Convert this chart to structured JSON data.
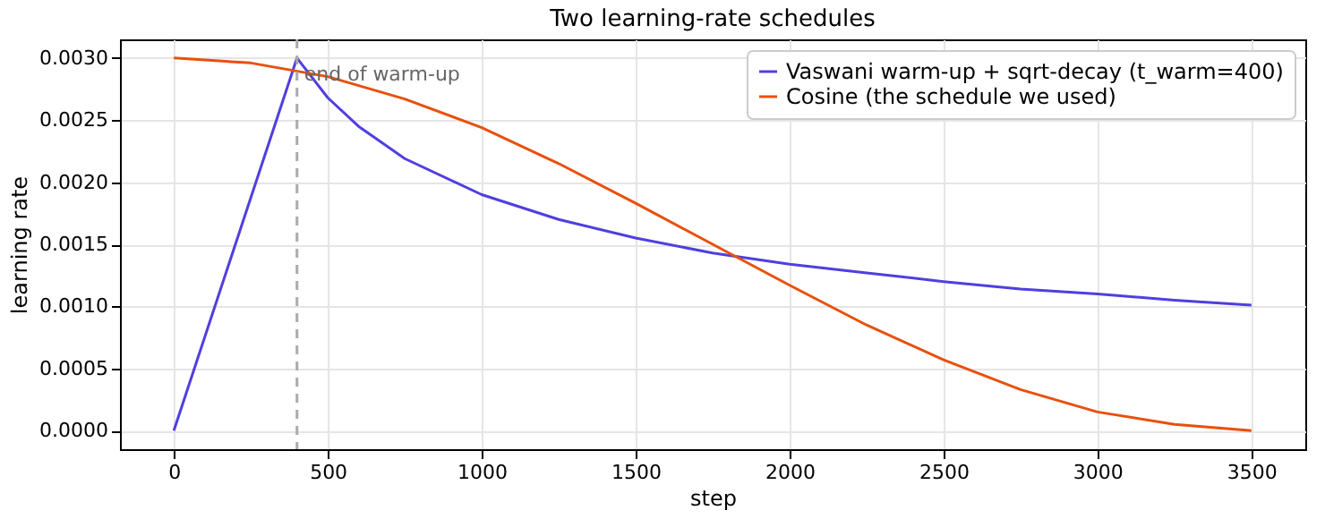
{
  "chart_data": {
    "type": "line",
    "title": "Two learning-rate schedules",
    "xlabel": "step",
    "ylabel": "learning rate",
    "series": [
      {
        "name": "Vaswani warm-up + sqrt-decay (t_warm=400)",
        "color": "#4f3fe0",
        "x": [
          0,
          400,
          500,
          600,
          750,
          1000,
          1250,
          1500,
          1750,
          2000,
          2250,
          2500,
          2750,
          3000,
          3250,
          3500
        ],
        "values": [
          0,
          0.003,
          0.00268,
          0.00245,
          0.00219,
          0.0019,
          0.0017,
          0.00155,
          0.00143,
          0.00134,
          0.00127,
          0.0012,
          0.00114,
          0.0011,
          0.00105,
          0.00101
        ]
      },
      {
        "name": "Cosine (the schedule we used)",
        "color": "#e8500c",
        "x": [
          0,
          250,
          500,
          750,
          1000,
          1250,
          1500,
          1750,
          2000,
          2250,
          2500,
          2750,
          3000,
          3250,
          3500
        ],
        "values": [
          0.003,
          0.00296,
          0.00285,
          0.00267,
          0.00244,
          0.00215,
          0.00183,
          0.0015,
          0.00117,
          0.00085,
          0.00057,
          0.00033,
          0.00015,
          5e-05,
          0
        ]
      }
    ],
    "xlim": [
      -175,
      3675
    ],
    "xticks": [
      0,
      500,
      1000,
      1500,
      2000,
      2500,
      3000,
      3500
    ],
    "ylim": [
      -0.00015,
      0.00315
    ],
    "yticks": [
      {
        "value": 0,
        "label": "0.0000"
      },
      {
        "value": 0.0005,
        "label": "0.0005"
      },
      {
        "value": 0.001,
        "label": "0.0010"
      },
      {
        "value": 0.0015,
        "label": "0.0015"
      },
      {
        "value": 0.002,
        "label": "0.0020"
      },
      {
        "value": 0.0025,
        "label": "0.0025"
      },
      {
        "value": 0.003,
        "label": "0.0030"
      }
    ],
    "ref_lines": [
      {
        "axis": "x",
        "value": 400,
        "label": "end of warm-up",
        "color": "#aaaaaa",
        "line_style": "dashed"
      }
    ],
    "grid": true,
    "legend": "top right",
    "marker": "none",
    "line_style": "solid"
  }
}
